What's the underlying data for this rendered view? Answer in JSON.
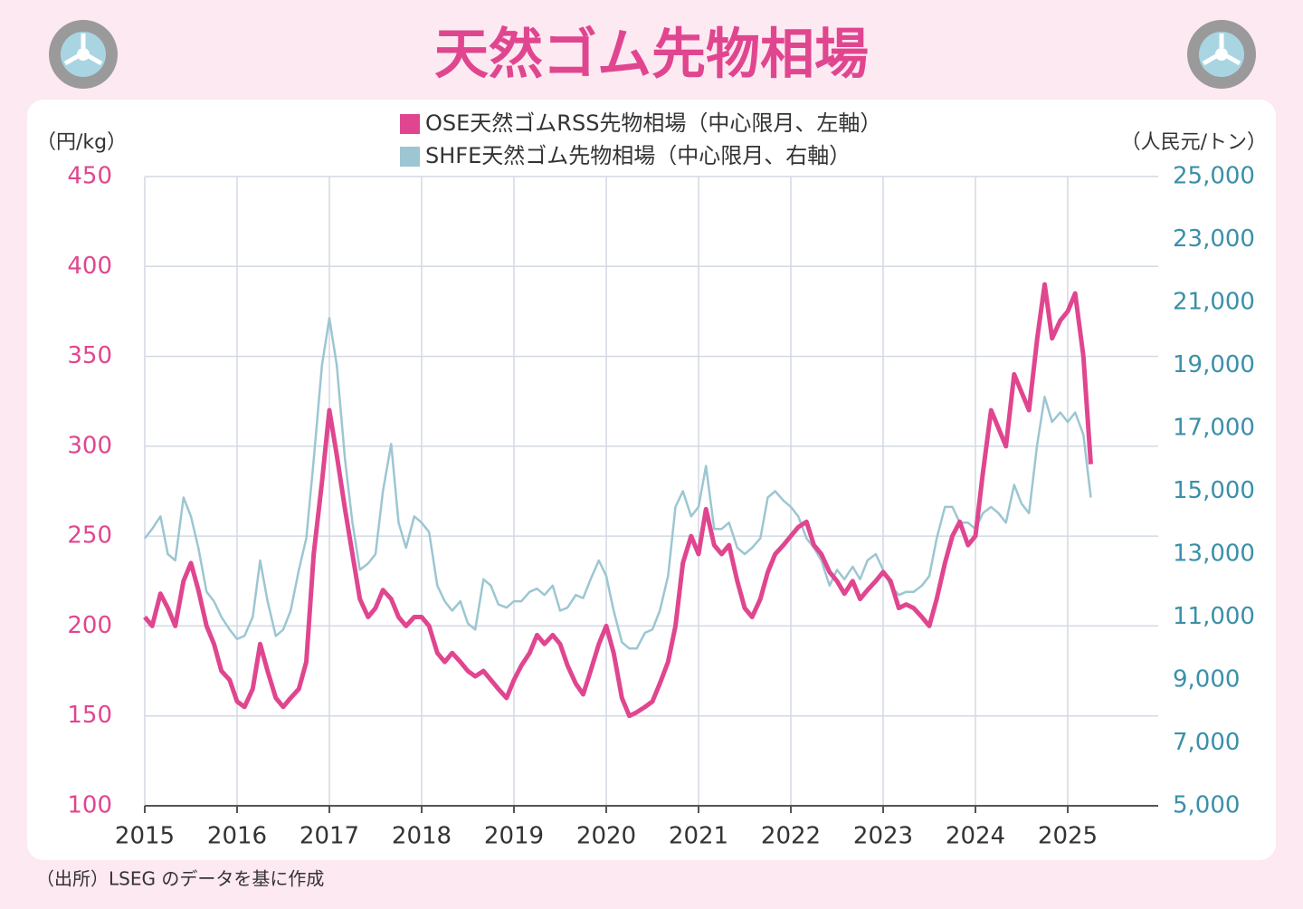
{
  "title": "天然ゴム先物相場",
  "source": "（出所）LSEG のデータを基に作成",
  "chart_data": {
    "type": "line",
    "y_label": "（円/kg）",
    "y2_label": "（人民元/トン）",
    "xlim": [
      2015,
      2026
    ],
    "xticks": [
      2015,
      2016,
      2017,
      2018,
      2019,
      2020,
      2021,
      2022,
      2023,
      2024,
      2025
    ],
    "ylim": [
      100,
      450
    ],
    "yticks": [
      100,
      150,
      200,
      250,
      300,
      350,
      400,
      450
    ],
    "y2lim": [
      5000,
      25000
    ],
    "y2ticks": [
      {
        "value": 5000,
        "label": "5,000"
      },
      {
        "value": 7000,
        "label": "7,000"
      },
      {
        "value": 9000,
        "label": "9,000"
      },
      {
        "value": 11000,
        "label": "11,000"
      },
      {
        "value": 13000,
        "label": "13,000"
      },
      {
        "value": 15000,
        "label": "15,000"
      },
      {
        "value": 17000,
        "label": "17,000"
      },
      {
        "value": 19000,
        "label": "19,000"
      },
      {
        "value": 21000,
        "label": "21,000"
      },
      {
        "value": 23000,
        "label": "23,000"
      },
      {
        "value": 25000,
        "label": "25,000"
      }
    ],
    "grid": true,
    "legend": "top",
    "x": [
      2015.0,
      2015.08,
      2015.17,
      2015.25,
      2015.33,
      2015.42,
      2015.5,
      2015.58,
      2015.67,
      2015.75,
      2015.83,
      2015.92,
      2016.0,
      2016.08,
      2016.17,
      2016.25,
      2016.33,
      2016.42,
      2016.5,
      2016.58,
      2016.67,
      2016.75,
      2016.83,
      2016.92,
      2017.0,
      2017.08,
      2017.17,
      2017.25,
      2017.33,
      2017.42,
      2017.5,
      2017.58,
      2017.67,
      2017.75,
      2017.83,
      2017.92,
      2018.0,
      2018.08,
      2018.17,
      2018.25,
      2018.33,
      2018.42,
      2018.5,
      2018.58,
      2018.67,
      2018.75,
      2018.83,
      2018.92,
      2019.0,
      2019.08,
      2019.17,
      2019.25,
      2019.33,
      2019.42,
      2019.5,
      2019.58,
      2019.67,
      2019.75,
      2019.83,
      2019.92,
      2020.0,
      2020.08,
      2020.17,
      2020.25,
      2020.33,
      2020.42,
      2020.5,
      2020.58,
      2020.67,
      2020.75,
      2020.83,
      2020.92,
      2021.0,
      2021.08,
      2021.17,
      2021.25,
      2021.33,
      2021.42,
      2021.5,
      2021.58,
      2021.67,
      2021.75,
      2021.83,
      2021.92,
      2022.0,
      2022.08,
      2022.17,
      2022.25,
      2022.33,
      2022.42,
      2022.5,
      2022.58,
      2022.67,
      2022.75,
      2022.83,
      2022.92,
      2023.0,
      2023.08,
      2023.17,
      2023.25,
      2023.33,
      2023.42,
      2023.5,
      2023.58,
      2023.67,
      2023.75,
      2023.83,
      2023.92,
      2024.0,
      2024.08,
      2024.17,
      2024.25,
      2024.33,
      2024.42,
      2024.5,
      2024.58,
      2024.67,
      2024.75,
      2024.83,
      2024.92,
      2025.0,
      2025.08,
      2025.17,
      2025.25
    ],
    "series": [
      {
        "name": "SHFE天然ゴム先物相場（中心限月、右軸）",
        "color": "#9cc6d2",
        "axis": "y2",
        "values": [
          13500,
          13800,
          14200,
          13000,
          12800,
          14800,
          14200,
          13200,
          11800,
          11500,
          11000,
          10600,
          10300,
          10400,
          11000,
          12800,
          11500,
          10400,
          10600,
          11200,
          12500,
          13500,
          16000,
          19000,
          20500,
          19000,
          16000,
          14000,
          12500,
          12700,
          13000,
          15000,
          16500,
          14000,
          13200,
          14200,
          14000,
          13700,
          12000,
          11500,
          11200,
          11500,
          10800,
          10600,
          12200,
          12000,
          11400,
          11300,
          11500,
          11500,
          11800,
          11900,
          11700,
          12000,
          11200,
          11300,
          11700,
          11600,
          12200,
          12800,
          12300,
          11200,
          10200,
          10000,
          10000,
          10500,
          10600,
          11200,
          12300,
          14500,
          15000,
          14200,
          14500,
          15800,
          13800,
          13800,
          14000,
          13200,
          13000,
          13200,
          13500,
          14800,
          15000,
          14700,
          14500,
          14200,
          13500,
          13200,
          12800,
          12000,
          12500,
          12200,
          12600,
          12200,
          12800,
          13000,
          12500,
          12000,
          11700,
          11800,
          11800,
          12000,
          12300,
          13500,
          14500,
          14500,
          14000,
          14000,
          13800,
          14300,
          14500,
          14300,
          14000,
          15200,
          14600,
          14300,
          16500,
          18000,
          17200,
          17500,
          17200,
          17500,
          16800,
          14800
        ]
      },
      {
        "name": "OSE天然ゴムRSS先物相場（中心限月、左軸）",
        "color": "#e0468f",
        "axis": "y",
        "values": [
          205,
          200,
          218,
          210,
          200,
          225,
          235,
          220,
          200,
          190,
          175,
          170,
          158,
          155,
          165,
          190,
          175,
          160,
          155,
          160,
          165,
          180,
          240,
          280,
          320,
          295,
          265,
          240,
          215,
          205,
          210,
          220,
          215,
          205,
          200,
          205,
          205,
          200,
          185,
          180,
          185,
          180,
          175,
          172,
          175,
          170,
          165,
          160,
          170,
          178,
          185,
          195,
          190,
          195,
          190,
          178,
          168,
          162,
          175,
          190,
          200,
          185,
          160,
          150,
          152,
          155,
          158,
          168,
          180,
          200,
          235,
          250,
          240,
          265,
          245,
          240,
          245,
          225,
          210,
          205,
          215,
          230,
          240,
          245,
          250,
          255,
          258,
          245,
          240,
          230,
          225,
          218,
          225,
          215,
          220,
          225,
          230,
          225,
          210,
          212,
          210,
          205,
          200,
          215,
          235,
          250,
          258,
          245,
          250,
          285,
          320,
          310,
          300,
          340,
          330,
          320,
          360,
          390,
          360,
          370,
          375,
          385,
          350,
          290
        ]
      }
    ]
  }
}
